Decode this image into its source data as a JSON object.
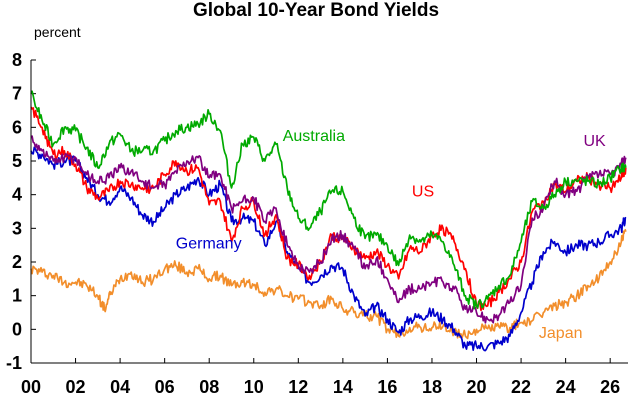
{
  "chart_data": {
    "type": "line",
    "title": "Global 10-Year Bond Yields",
    "unit_label": "percent",
    "xlim": [
      2000,
      2026.8
    ],
    "ylim": [
      -1,
      8
    ],
    "y_ticks": [
      -1,
      0,
      1,
      2,
      3,
      4,
      5,
      6,
      7,
      8
    ],
    "x_ticks": [
      {
        "value": 2000,
        "label": "00"
      },
      {
        "value": 2002,
        "label": "02"
      },
      {
        "value": 2004,
        "label": "04"
      },
      {
        "value": 2006,
        "label": "06"
      },
      {
        "value": 2008,
        "label": "08"
      },
      {
        "value": 2010,
        "label": "10"
      },
      {
        "value": 2012,
        "label": "12"
      },
      {
        "value": 2014,
        "label": "14"
      },
      {
        "value": 2016,
        "label": "16"
      },
      {
        "value": 2018,
        "label": "18"
      },
      {
        "value": 2020,
        "label": "20"
      },
      {
        "value": 2022,
        "label": "22"
      },
      {
        "value": 2024,
        "label": "24"
      },
      {
        "value": 2026,
        "label": "26"
      }
    ],
    "grid": false,
    "series": [
      {
        "name": "Japan",
        "color": "#f28e2b",
        "label_x": 2022.8,
        "label_y": -0.25,
        "x": [
          2000,
          2000.5,
          2001,
          2001.5,
          2002,
          2002.5,
          2003,
          2003.3,
          2003.6,
          2004,
          2004.5,
          2005,
          2005.5,
          2006,
          2006.5,
          2007,
          2007.5,
          2008,
          2008.5,
          2009,
          2009.5,
          2010,
          2010.5,
          2011,
          2011.5,
          2012,
          2012.5,
          2013,
          2013.5,
          2014,
          2014.5,
          2015,
          2015.5,
          2016,
          2016.5,
          2017,
          2017.5,
          2018,
          2018.5,
          2019,
          2019.5,
          2020,
          2020.5,
          2021,
          2021.5,
          2022,
          2022.5,
          2023,
          2023.5,
          2024,
          2024.5,
          2025,
          2025.5,
          2026,
          2026.5,
          2026.7
        ],
        "values": [
          1.8,
          1.7,
          1.6,
          1.4,
          1.4,
          1.3,
          1.0,
          0.6,
          1.1,
          1.5,
          1.7,
          1.4,
          1.5,
          1.8,
          1.9,
          1.7,
          1.8,
          1.5,
          1.6,
          1.3,
          1.4,
          1.3,
          1.1,
          1.2,
          1.0,
          0.9,
          0.8,
          0.7,
          0.9,
          0.6,
          0.5,
          0.4,
          0.4,
          0.0,
          -0.2,
          0.05,
          0.05,
          0.05,
          0.1,
          -0.1,
          -0.2,
          0.0,
          0.02,
          0.08,
          0.05,
          0.2,
          0.25,
          0.5,
          0.7,
          0.8,
          1.0,
          1.3,
          1.5,
          2.0,
          2.6,
          2.9
        ]
      },
      {
        "name": "Germany",
        "color": "#0000cc",
        "label_x": 2006.5,
        "label_y": 2.4,
        "x": [
          2000,
          2000.5,
          2001,
          2001.5,
          2002,
          2002.5,
          2003,
          2003.5,
          2004,
          2004.5,
          2005,
          2005.5,
          2006,
          2006.5,
          2007,
          2007.5,
          2008,
          2008.5,
          2009,
          2009.5,
          2010,
          2010.5,
          2011,
          2011.5,
          2012,
          2012.5,
          2013,
          2013.5,
          2014,
          2014.5,
          2015,
          2015.5,
          2016,
          2016.5,
          2017,
          2017.5,
          2018,
          2018.5,
          2019,
          2019.5,
          2020,
          2020.5,
          2021,
          2021.5,
          2022,
          2022.5,
          2023,
          2023.5,
          2024,
          2024.5,
          2025,
          2025.5,
          2026,
          2026.5,
          2026.7
        ],
        "values": [
          5.3,
          5.2,
          4.9,
          5.0,
          5.0,
          4.5,
          4.0,
          3.8,
          4.2,
          3.9,
          3.4,
          3.2,
          3.6,
          4.0,
          4.2,
          4.5,
          4.0,
          4.3,
          3.2,
          3.3,
          3.2,
          2.5,
          3.2,
          2.3,
          1.8,
          1.4,
          1.6,
          1.9,
          1.8,
          1.0,
          0.4,
          0.7,
          0.3,
          -0.1,
          0.3,
          0.4,
          0.5,
          0.3,
          0.0,
          -0.5,
          -0.5,
          -0.5,
          -0.4,
          -0.2,
          0.5,
          1.4,
          2.3,
          2.6,
          2.3,
          2.5,
          2.5,
          2.6,
          2.8,
          3.0,
          3.3
        ]
      },
      {
        "name": "US",
        "color": "#ff0000",
        "label_x": 2017.1,
        "label_y": 3.95,
        "x": [
          2000,
          2000.5,
          2001,
          2001.5,
          2002,
          2002.5,
          2003,
          2003.5,
          2004,
          2004.5,
          2005,
          2005.5,
          2006,
          2006.5,
          2007,
          2007.5,
          2008,
          2008.5,
          2009,
          2009.5,
          2010,
          2010.5,
          2011,
          2011.5,
          2012,
          2012.5,
          2013,
          2013.5,
          2014,
          2014.5,
          2015,
          2015.5,
          2016,
          2016.5,
          2017,
          2017.5,
          2018,
          2018.5,
          2019,
          2019.5,
          2020,
          2020.5,
          2021,
          2021.5,
          2022,
          2022.5,
          2023,
          2023.5,
          2024,
          2024.5,
          2025,
          2025.5,
          2026,
          2026.5,
          2026.7
        ],
        "values": [
          6.6,
          6.0,
          5.2,
          5.3,
          4.9,
          4.2,
          3.9,
          4.1,
          4.4,
          4.3,
          4.2,
          4.2,
          4.6,
          5.0,
          4.7,
          4.8,
          3.7,
          3.8,
          2.6,
          3.6,
          3.8,
          2.8,
          3.4,
          2.1,
          1.9,
          1.6,
          2.0,
          2.8,
          2.7,
          2.4,
          2.1,
          2.3,
          1.9,
          1.5,
          2.4,
          2.3,
          2.8,
          3.0,
          2.6,
          1.8,
          0.7,
          0.7,
          1.1,
          1.5,
          2.0,
          3.5,
          3.8,
          4.3,
          4.1,
          4.4,
          4.5,
          4.3,
          4.2,
          4.5,
          4.8
        ]
      },
      {
        "name": "UK",
        "color": "#800080",
        "label_x": 2024.8,
        "label_y": 5.45,
        "x": [
          2000,
          2000.5,
          2001,
          2001.5,
          2002,
          2002.5,
          2003,
          2003.5,
          2004,
          2004.5,
          2005,
          2005.5,
          2006,
          2006.5,
          2007,
          2007.5,
          2008,
          2008.5,
          2009,
          2009.5,
          2010,
          2010.5,
          2011,
          2011.5,
          2012,
          2012.5,
          2013,
          2013.5,
          2014,
          2014.5,
          2015,
          2015.5,
          2016,
          2016.5,
          2017,
          2017.5,
          2018,
          2018.5,
          2019,
          2019.5,
          2020,
          2020.5,
          2021,
          2021.5,
          2022,
          2022.5,
          2023,
          2023.5,
          2024,
          2024.5,
          2025,
          2025.5,
          2026,
          2026.5,
          2026.7
        ],
        "values": [
          5.7,
          5.3,
          5.0,
          5.1,
          5.1,
          4.6,
          4.4,
          4.5,
          4.8,
          4.7,
          4.4,
          4.2,
          4.3,
          4.7,
          5.0,
          5.1,
          4.5,
          4.6,
          3.6,
          3.8,
          3.9,
          3.2,
          3.6,
          2.5,
          1.9,
          1.7,
          2.0,
          2.7,
          2.8,
          2.4,
          1.8,
          2.1,
          1.5,
          0.8,
          1.2,
          1.2,
          1.4,
          1.4,
          1.2,
          0.6,
          0.5,
          0.3,
          0.4,
          0.8,
          1.3,
          3.3,
          3.6,
          4.4,
          4.0,
          4.1,
          4.5,
          4.6,
          4.6,
          4.9,
          5.1
        ]
      },
      {
        "name": "Australia",
        "color": "#00aa00",
        "label_x": 2011.3,
        "label_y": 5.6,
        "x": [
          2000,
          2000.5,
          2001,
          2001.5,
          2002,
          2002.5,
          2003,
          2003.5,
          2004,
          2004.5,
          2005,
          2005.5,
          2006,
          2006.5,
          2007,
          2007.5,
          2008,
          2008.5,
          2009,
          2009.5,
          2010,
          2010.5,
          2011,
          2011.5,
          2012,
          2012.5,
          2013,
          2013.5,
          2014,
          2014.5,
          2015,
          2015.5,
          2016,
          2016.5,
          2017,
          2017.5,
          2018,
          2018.5,
          2019,
          2019.5,
          2020,
          2020.5,
          2021,
          2021.5,
          2022,
          2022.5,
          2023,
          2023.5,
          2024,
          2024.5,
          2025,
          2025.5,
          2026,
          2026.5,
          2026.7
        ],
        "values": [
          7.0,
          6.2,
          5.5,
          6.0,
          5.9,
          5.4,
          4.8,
          5.5,
          5.8,
          5.3,
          5.3,
          5.3,
          5.6,
          5.9,
          6.0,
          6.1,
          6.4,
          5.9,
          4.2,
          5.5,
          5.7,
          5.0,
          5.5,
          4.2,
          3.3,
          3.0,
          3.5,
          4.1,
          4.1,
          3.3,
          2.7,
          2.8,
          2.5,
          1.9,
          2.8,
          2.6,
          2.8,
          2.6,
          1.9,
          1.0,
          0.7,
          0.9,
          1.3,
          1.6,
          2.6,
          3.8,
          3.6,
          4.0,
          4.4,
          4.4,
          4.4,
          4.3,
          4.5,
          4.8,
          4.8
        ]
      }
    ]
  }
}
